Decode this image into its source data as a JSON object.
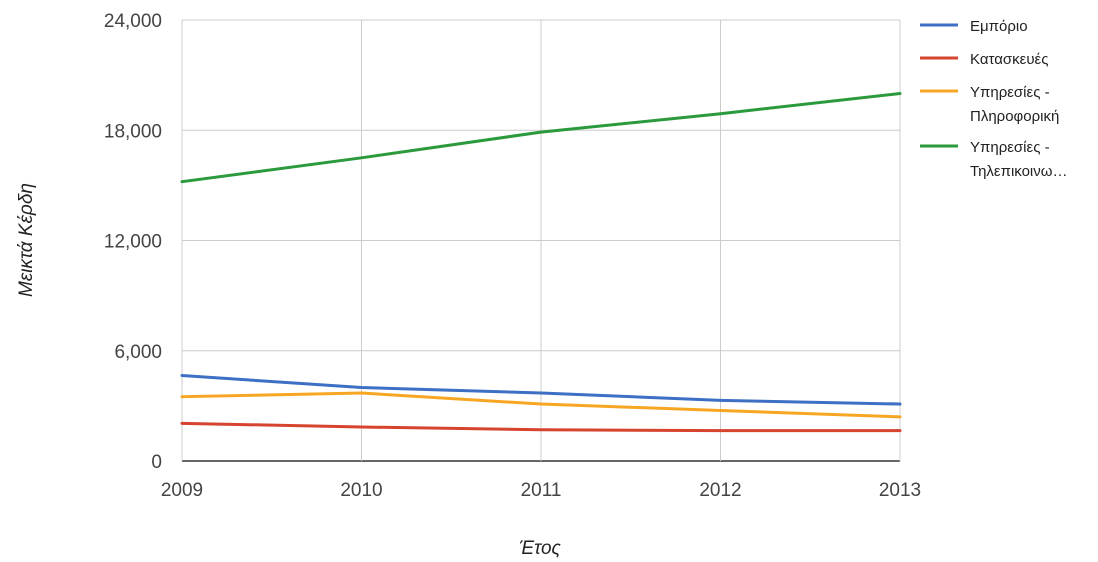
{
  "chart_data": {
    "type": "line",
    "title": "",
    "xlabel": "Έτος",
    "ylabel": "Μεικτά Κέρδη",
    "x": [
      2009,
      2010,
      2011,
      2012,
      2013
    ],
    "x_tick_labels": [
      "2009",
      "2010",
      "2011",
      "2012",
      "2013"
    ],
    "ylim": [
      0,
      24000
    ],
    "y_ticks": [
      0,
      6000,
      12000,
      18000,
      24000
    ],
    "y_tick_labels": [
      "0",
      "6,000",
      "12,000",
      "18,000",
      "24,000"
    ],
    "grid": true,
    "legend_position": "right",
    "series": [
      {
        "name": "Εμπόριο",
        "legend_lines": [
          "Εμπόριο"
        ],
        "color": "#3d6fc4",
        "values": [
          4650,
          4000,
          3700,
          3300,
          3100
        ]
      },
      {
        "name": "Κατασκευές",
        "legend_lines": [
          "Κατασκευές"
        ],
        "color": "#d6432e",
        "values": [
          2050,
          1850,
          1700,
          1650,
          1650
        ]
      },
      {
        "name": "Υπηρεσίες - Πληροφορική",
        "legend_lines": [
          "Υπηρεσίες -",
          "Πληροφορική"
        ],
        "color": "#f6a623",
        "values": [
          3500,
          3700,
          3100,
          2750,
          2400
        ]
      },
      {
        "name": "Υπηρεσίες - Τηλεπικοινω…",
        "legend_lines": [
          "Υπηρεσίες -",
          "Τηλεπικοινω…"
        ],
        "color": "#2a9a3c",
        "values": [
          15200,
          16500,
          17900,
          18900,
          20000
        ]
      }
    ]
  }
}
